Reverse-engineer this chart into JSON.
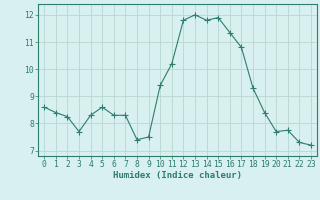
{
  "x": [
    0,
    1,
    2,
    3,
    4,
    5,
    6,
    7,
    8,
    9,
    10,
    11,
    12,
    13,
    14,
    15,
    16,
    17,
    18,
    19,
    20,
    21,
    22,
    23
  ],
  "y": [
    8.6,
    8.4,
    8.25,
    7.7,
    8.3,
    8.6,
    8.3,
    8.3,
    7.4,
    7.5,
    9.4,
    10.2,
    11.8,
    12.0,
    11.8,
    11.9,
    11.35,
    10.8,
    9.3,
    8.4,
    7.7,
    7.75,
    7.3,
    7.2
  ],
  "line_color": "#2e7d6e",
  "marker": "+",
  "marker_size": 4,
  "bg_color": "#d8f0f0",
  "grid_color": "#b8d8d0",
  "axis_color": "#2e7d6e",
  "xlabel": "Humidex (Indice chaleur)",
  "ylim": [
    6.8,
    12.4
  ],
  "xlim": [
    -0.5,
    23.5
  ],
  "yticks": [
    7,
    8,
    9,
    10,
    11,
    12
  ],
  "xticks": [
    0,
    1,
    2,
    3,
    4,
    5,
    6,
    7,
    8,
    9,
    10,
    11,
    12,
    13,
    14,
    15,
    16,
    17,
    18,
    19,
    20,
    21,
    22,
    23
  ],
  "label_fontsize": 6.5,
  "tick_fontsize": 5.8
}
